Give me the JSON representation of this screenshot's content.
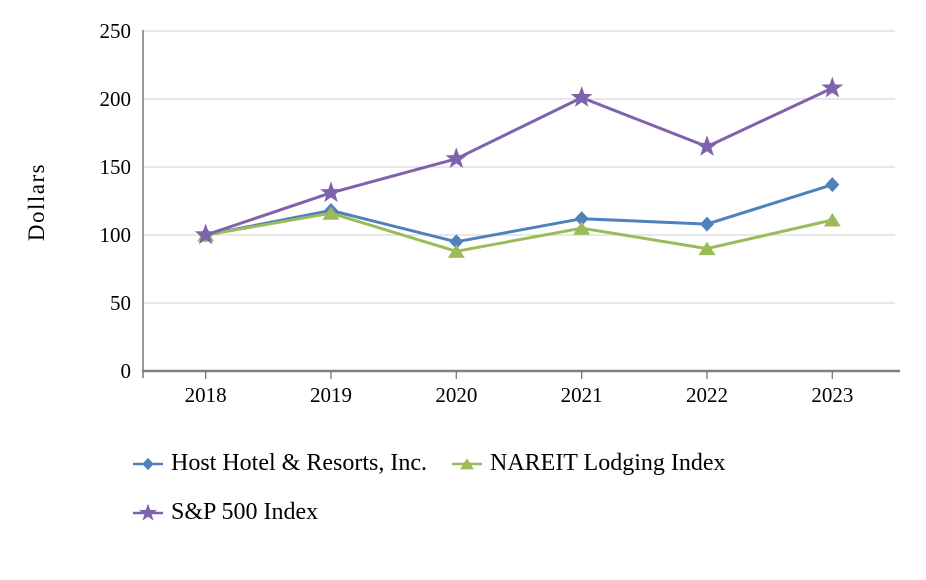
{
  "page": {
    "background": "#ffffff"
  },
  "chart_data": {
    "type": "line",
    "title": "",
    "xlabel": "",
    "ylabel": "Dollars",
    "categories": [
      "2018",
      "2019",
      "2020",
      "2021",
      "2022",
      "2023"
    ],
    "y_ticks": [
      0,
      50,
      100,
      150,
      200,
      250
    ],
    "ylim": [
      0,
      250
    ],
    "grid": "horizontal",
    "legend_position": "bottom-left",
    "series": [
      {
        "name": "Host Hotel & Resorts, Inc.",
        "marker": "diamond",
        "color": "#4F81BD",
        "values": [
          100,
          118,
          95,
          112,
          108,
          137
        ]
      },
      {
        "name": "NAREIT Lodging Index",
        "marker": "triangle",
        "color": "#9BBB59",
        "values": [
          100,
          116,
          88,
          105,
          90,
          111
        ]
      },
      {
        "name": "S&P 500 Index",
        "marker": "star",
        "color": "#7E63AC",
        "values": [
          100,
          131,
          156,
          201,
          165,
          208
        ]
      }
    ],
    "axis_color": "#808080",
    "gridline_color": "#DBDBDB",
    "text_color": "#000000"
  }
}
